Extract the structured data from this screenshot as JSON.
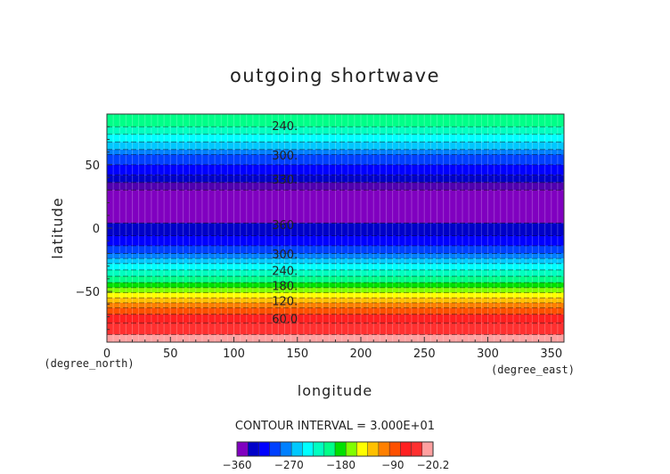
{
  "chart_data": {
    "type": "heatmap",
    "title": "outgoing shortwave",
    "xlabel": "longitude",
    "ylabel": "latitude",
    "x_unit": "(degree_east)",
    "y_unit": "(degree_north)",
    "xlim": [
      0,
      360
    ],
    "ylim": [
      -90,
      90
    ],
    "x_ticks": [
      0,
      50,
      100,
      150,
      200,
      250,
      300,
      350
    ],
    "y_ticks": [
      50,
      0,
      -50
    ],
    "contour_interval_text": "CONTOUR INTERVAL = 3.000E+01",
    "contour_labels": [
      {
        "text": "240.",
        "lon": 130,
        "lat": 80
      },
      {
        "text": "300.",
        "lon": 130,
        "lat": 57
      },
      {
        "text": "330.",
        "lon": 130,
        "lat": 38
      },
      {
        "text": "360",
        "lon": 130,
        "lat": 2
      },
      {
        "text": "300.",
        "lon": 130,
        "lat": -21
      },
      {
        "text": "240.",
        "lon": 130,
        "lat": -34
      },
      {
        "text": "180.",
        "lon": 130,
        "lat": -46
      },
      {
        "text": "120.",
        "lon": 130,
        "lat": -58
      },
      {
        "text": "60.0",
        "lon": 130,
        "lat": -72
      }
    ],
    "lat_bands": [
      {
        "lat_top": 90,
        "lat_bottom": 80,
        "color": "#00ff88"
      },
      {
        "lat_top": 80,
        "lat_bottom": 74,
        "color": "#00ffc0"
      },
      {
        "lat_top": 74,
        "lat_bottom": 68,
        "color": "#00ffff"
      },
      {
        "lat_top": 68,
        "lat_bottom": 62,
        "color": "#00c8ff"
      },
      {
        "lat_top": 62,
        "lat_bottom": 58,
        "color": "#0080ff"
      },
      {
        "lat_top": 58,
        "lat_bottom": 50,
        "color": "#0040ff"
      },
      {
        "lat_top": 50,
        "lat_bottom": 42,
        "color": "#0000ff"
      },
      {
        "lat_top": 42,
        "lat_bottom": 36,
        "color": "#0000c8"
      },
      {
        "lat_top": 36,
        "lat_bottom": 30,
        "color": "#5000b0"
      },
      {
        "lat_top": 30,
        "lat_bottom": 4,
        "color": "#8000c0"
      },
      {
        "lat_top": 4,
        "lat_bottom": -6,
        "color": "#0000c8"
      },
      {
        "lat_top": -6,
        "lat_bottom": -14,
        "color": "#0000ff"
      },
      {
        "lat_top": -14,
        "lat_bottom": -20,
        "color": "#0040ff"
      },
      {
        "lat_top": -20,
        "lat_bottom": -24,
        "color": "#0080ff"
      },
      {
        "lat_top": -24,
        "lat_bottom": -28,
        "color": "#00c8ff"
      },
      {
        "lat_top": -28,
        "lat_bottom": -33,
        "color": "#00ffff"
      },
      {
        "lat_top": -33,
        "lat_bottom": -38,
        "color": "#00ffc0"
      },
      {
        "lat_top": -38,
        "lat_bottom": -43,
        "color": "#00ff88"
      },
      {
        "lat_top": -43,
        "lat_bottom": -47,
        "color": "#00e000"
      },
      {
        "lat_top": -47,
        "lat_bottom": -51,
        "color": "#80ff00"
      },
      {
        "lat_top": -51,
        "lat_bottom": -55,
        "color": "#ffff00"
      },
      {
        "lat_top": -55,
        "lat_bottom": -59,
        "color": "#ffc000"
      },
      {
        "lat_top": -59,
        "lat_bottom": -63,
        "color": "#ff8000"
      },
      {
        "lat_top": -63,
        "lat_bottom": -68,
        "color": "#ff5000"
      },
      {
        "lat_top": -68,
        "lat_bottom": -75,
        "color": "#ff2020"
      },
      {
        "lat_top": -75,
        "lat_bottom": -84,
        "color": "#ff3030"
      },
      {
        "lat_top": -84,
        "lat_bottom": -90,
        "color": "#ffa0a0"
      }
    ],
    "colorbar": {
      "colors": [
        "#8000c0",
        "#0000c8",
        "#0000ff",
        "#0040ff",
        "#0080ff",
        "#00c8ff",
        "#00ffff",
        "#00ffc0",
        "#00ff88",
        "#00e000",
        "#80ff00",
        "#ffff00",
        "#ffc000",
        "#ff8000",
        "#ff5000",
        "#ff2020",
        "#ff3030",
        "#ffa0a0"
      ],
      "tick_labels": [
        "−360",
        "−270",
        "−180",
        "−90",
        "−20.2"
      ],
      "tick_values": [
        -360,
        -270,
        -180,
        -90,
        -20.2
      ],
      "range": [
        -360,
        -20.2
      ]
    },
    "grid": false
  }
}
